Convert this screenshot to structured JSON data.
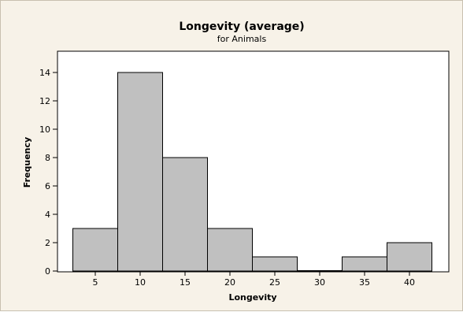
{
  "chart_data": {
    "type": "bar",
    "title": "Longevity (average)",
    "subtitle": "for Animals",
    "xlabel": "Longevity",
    "ylabel": "Frequency",
    "bin_width": 5,
    "categories": [
      "5",
      "10",
      "15",
      "20",
      "25",
      "30",
      "35",
      "40"
    ],
    "x": [
      5,
      10,
      15,
      20,
      25,
      30,
      35,
      40
    ],
    "values": [
      3,
      14,
      8,
      3,
      1,
      0,
      1,
      2
    ],
    "ylim": [
      0,
      15
    ],
    "yticks": [
      "0",
      "2",
      "4",
      "6",
      "8",
      "10",
      "12",
      "14"
    ],
    "grid": false,
    "bar_color": "#c0c0c0",
    "frame_color": "#f7f2e8"
  }
}
